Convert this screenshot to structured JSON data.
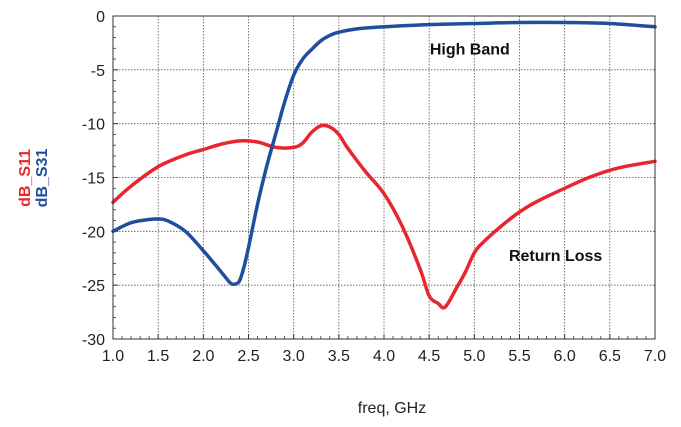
{
  "chart_data": {
    "type": "line",
    "title": "",
    "xlabel": "freq, GHz",
    "ylabels": [
      {
        "text": "dB_S11",
        "color": "#e8262d"
      },
      {
        "text": "dB_S31",
        "color": "#1f4e9c"
      }
    ],
    "xlim": [
      1.0,
      7.0
    ],
    "ylim": [
      -30,
      0
    ],
    "xticks": [
      "1.0",
      "1.5",
      "2.0",
      "2.5",
      "3.0",
      "3.5",
      "4.0",
      "4.5",
      "5.0",
      "5.5",
      "6.0",
      "6.5",
      "7.0"
    ],
    "yticks": [
      "0",
      "-5",
      "-10",
      "-15",
      "-20",
      "-25",
      "-30"
    ],
    "xtick_values": [
      1.0,
      1.5,
      2.0,
      2.5,
      3.0,
      3.5,
      4.0,
      4.5,
      5.0,
      5.5,
      6.0,
      6.5,
      7.0
    ],
    "ytick_values": [
      0,
      -5,
      -10,
      -15,
      -20,
      -25,
      -30
    ],
    "grid": true,
    "series": [
      {
        "name": "dB_S11",
        "color": "#e8262d",
        "x": [
          1.0,
          1.2,
          1.5,
          1.8,
          2.0,
          2.2,
          2.4,
          2.6,
          2.8,
          3.0,
          3.1,
          3.2,
          3.3,
          3.4,
          3.5,
          3.6,
          3.8,
          4.0,
          4.2,
          4.4,
          4.5,
          4.6,
          4.65,
          4.7,
          4.8,
          4.9,
          5.0,
          5.1,
          5.3,
          5.5,
          5.7,
          6.0,
          6.3,
          6.6,
          7.0
        ],
        "y": [
          -17.3,
          -15.8,
          -14.0,
          -12.9,
          -12.4,
          -11.9,
          -11.6,
          -11.7,
          -12.2,
          -12.2,
          -11.8,
          -10.8,
          -10.2,
          -10.3,
          -11.0,
          -12.3,
          -14.5,
          -16.5,
          -19.5,
          -23.5,
          -26.0,
          -26.7,
          -27.1,
          -26.8,
          -25.3,
          -23.8,
          -22.0,
          -21.0,
          -19.5,
          -18.2,
          -17.2,
          -16.0,
          -14.9,
          -14.1,
          -13.5
        ]
      },
      {
        "name": "dB_S31",
        "color": "#1f4e9c",
        "x": [
          1.0,
          1.2,
          1.4,
          1.5,
          1.6,
          1.8,
          2.0,
          2.2,
          2.3,
          2.35,
          2.4,
          2.45,
          2.5,
          2.6,
          2.7,
          2.8,
          2.9,
          3.0,
          3.1,
          3.2,
          3.3,
          3.4,
          3.5,
          3.7,
          4.0,
          4.5,
          5.0,
          5.5,
          6.0,
          6.5,
          7.0
        ],
        "y": [
          -20.0,
          -19.2,
          -18.9,
          -18.85,
          -19.0,
          -20.0,
          -21.8,
          -23.8,
          -24.8,
          -24.9,
          -24.6,
          -23.3,
          -21.5,
          -17.5,
          -14.0,
          -11.0,
          -8.0,
          -5.5,
          -4.0,
          -3.1,
          -2.3,
          -1.8,
          -1.5,
          -1.2,
          -1.0,
          -0.8,
          -0.7,
          -0.6,
          -0.6,
          -0.7,
          -1.0
        ]
      }
    ],
    "annotations": [
      {
        "text": "High Band",
        "x": 4.95,
        "y": -3.0
      },
      {
        "text": "Return Loss",
        "x": 5.9,
        "y": -22.2
      }
    ]
  }
}
